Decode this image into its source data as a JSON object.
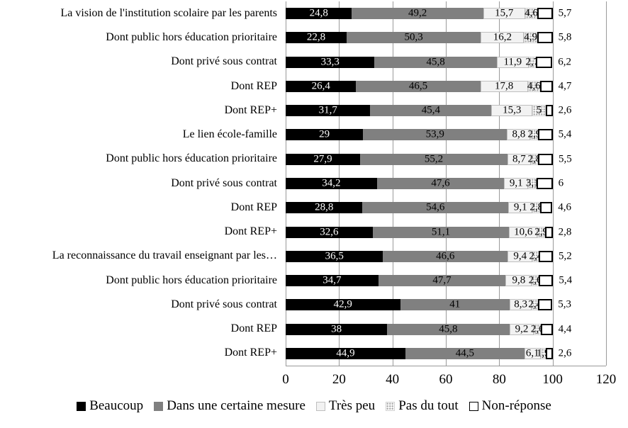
{
  "chart_data": {
    "type": "bar",
    "orientation": "horizontal-stacked",
    "title": "",
    "categories": [
      "La vision de l'institution scolaire par les parents",
      "Dont public hors éducation prioritaire",
      "Dont privé sous contrat",
      "Dont REP",
      "Dont REP+",
      "Le lien école-famille",
      "Dont public hors éducation prioritaire",
      "Dont privé sous contrat",
      "Dont REP",
      "Dont REP+",
      "La reconnaissance du travail enseignant par les…",
      "Dont public hors éducation prioritaire",
      "Dont privé sous contrat",
      "Dont REP",
      "Dont REP+"
    ],
    "series": [
      {
        "name": "Beaucoup",
        "color": "#000000",
        "label_color": "#FFFFFF",
        "values": [
          24.8,
          22.8,
          33.3,
          26.4,
          31.7,
          29,
          27.9,
          34.2,
          28.8,
          32.6,
          36.5,
          34.7,
          42.9,
          38,
          44.9
        ]
      },
      {
        "name": "Dans une certaine mesure",
        "color": "#808080",
        "label_color": "#000000",
        "values": [
          49.2,
          50.3,
          45.8,
          46.5,
          45.4,
          53.9,
          55.2,
          47.6,
          54.6,
          51.1,
          46.6,
          47.7,
          41,
          45.8,
          44.5
        ]
      },
      {
        "name": "Très peu",
        "color": "#F2F2F2",
        "border_color": "#BFBFBF",
        "label_color": "#000000",
        "values": [
          15.7,
          16.2,
          11.9,
          17.8,
          15.3,
          8.8,
          8.7,
          9.1,
          9.1,
          10.6,
          9.4,
          9.8,
          8.3,
          9.2,
          6.1
        ]
      },
      {
        "name": "Pas du tout",
        "color": "pattern-dots",
        "pattern_color": "#ABABAB",
        "label_color": "#000000",
        "values": [
          4.6,
          4.9,
          2.7,
          4.6,
          5,
          2.9,
          2.8,
          3.1,
          2.8,
          2.9,
          2.4,
          2.6,
          2.4,
          2.6,
          1.9
        ]
      },
      {
        "name": "Non-réponse",
        "color": "#FFFFFF",
        "border_color": "#000000",
        "label_color": "#000000",
        "label_outside": true,
        "values": [
          5.7,
          5.8,
          6.2,
          4.7,
          2.6,
          5.4,
          5.5,
          6,
          4.6,
          2.8,
          5.2,
          5.4,
          5.3,
          4.4,
          2.6
        ]
      }
    ],
    "x_ticks": [
      0,
      20,
      40,
      60,
      80,
      100,
      120
    ],
    "xlim": [
      0,
      120
    ],
    "grid": true,
    "gridline_color": "#9A9A9A",
    "legend_position": "bottom",
    "decimal_separator": ","
  }
}
